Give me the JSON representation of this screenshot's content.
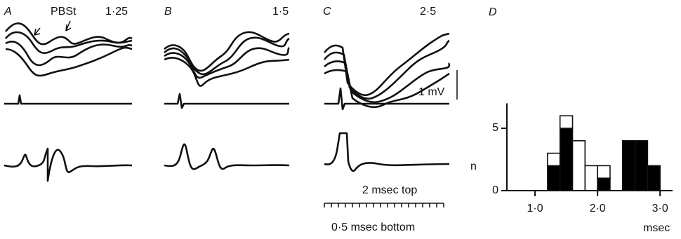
{
  "panels": {
    "a": {
      "label": "A",
      "stimulus": "PBSt",
      "ratio": "1·25"
    },
    "b": {
      "label": "B",
      "ratio": "1·5"
    },
    "c": {
      "label": "C",
      "ratio": "2·5",
      "scale_voltage": "1 mV",
      "scale_time_top": "2 msec top",
      "scale_time_bottom": "0·5 msec bottom"
    }
  },
  "chart_data": {
    "type": "histogram",
    "label": "D",
    "x_label": "msec",
    "y_label": "n",
    "bins": [
      1.2,
      1.4,
      1.6,
      1.8,
      2.0,
      2.2,
      2.4,
      2.6,
      2.8,
      3.0
    ],
    "series": [
      {
        "color": "#000000",
        "values": [
          2,
          5,
          0,
          0,
          1,
          0,
          4,
          4,
          2
        ]
      },
      {
        "color": "#ffffff",
        "values": [
          1,
          1,
          4,
          2,
          1,
          0,
          0,
          0,
          0
        ]
      }
    ],
    "xlim": [
      0.55,
      3.2
    ],
    "ylim": [
      0,
      7
    ],
    "xticks": [
      {
        "value": 1,
        "label": "1·0"
      },
      {
        "value": 2,
        "label": "2·0"
      },
      {
        "value": 3,
        "label": "3·0"
      }
    ],
    "yticks": [
      0,
      5
    ]
  }
}
